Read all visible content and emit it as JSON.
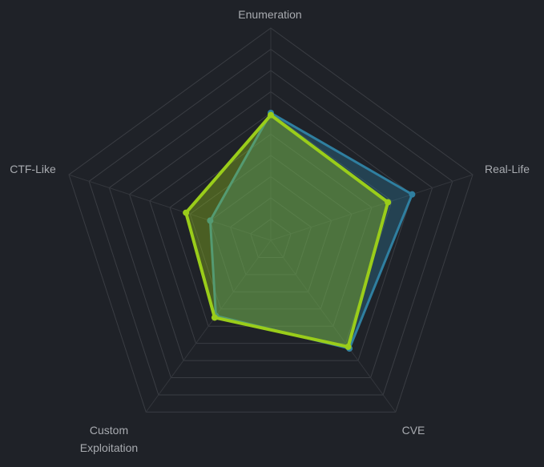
{
  "chart_data": {
    "type": "radar",
    "categories": [
      "Enumeration",
      "Real-Life",
      "CVE",
      "Custom Exploitation",
      "CTF-Like"
    ],
    "rlim": [
      0,
      100
    ],
    "rticks": [
      10,
      20,
      30,
      40,
      50,
      60,
      70,
      80,
      90,
      100
    ],
    "series": [
      {
        "color": "#2f7fa0",
        "values": [
          60,
          70,
          63,
          44,
          30
        ]
      },
      {
        "color": "#9acd1a",
        "values": [
          59,
          58,
          62,
          45,
          42
        ]
      }
    ]
  }
}
